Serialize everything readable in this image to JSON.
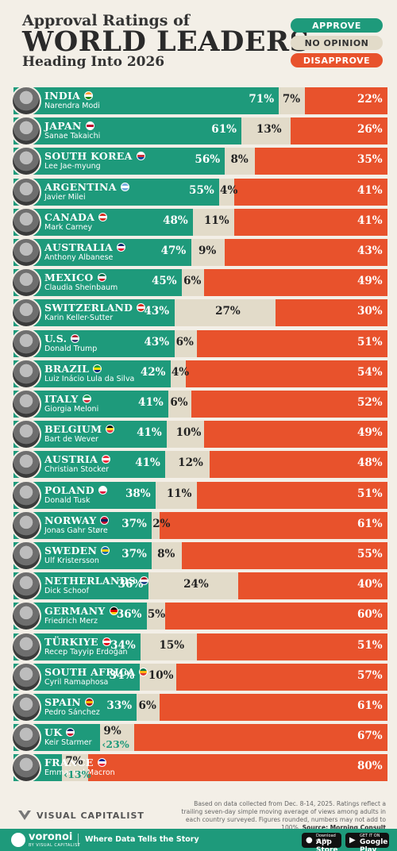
{
  "header": {
    "title_line1": "Approval Ratings of",
    "title_line2": "WORLD LEADERS",
    "title_line3": "Heading Into 2026"
  },
  "legend": [
    {
      "label": "APPROVE",
      "color": "#1e9a7b",
      "text_color": "#ffffff"
    },
    {
      "label": "NO OPINION",
      "color": "#e2dbc9",
      "text_color": "#333333"
    },
    {
      "label": "DISAPPROVE",
      "color": "#e8522c",
      "text_color": "#ffffff"
    }
  ],
  "chart_data": {
    "type": "bar",
    "stacked": true,
    "orientation": "horizontal",
    "unit": "%",
    "colors": {
      "approve": "#1e9a7b",
      "no_opinion": "#e2dbc9",
      "disapprove": "#e8522c"
    },
    "rows": [
      {
        "country": "INDIA",
        "leader": "Narendra Modi",
        "approve": 71,
        "no_opinion": 7,
        "disapprove": 22,
        "flag": [
          "#ff9933",
          "#ffffff",
          "#138808"
        ]
      },
      {
        "country": "JAPAN",
        "leader": "Sanae Takaichi",
        "approve": 61,
        "no_opinion": 13,
        "disapprove": 26,
        "flag": [
          "#ffffff",
          "#bc002d",
          "#ffffff"
        ]
      },
      {
        "country": "SOUTH KOREA",
        "leader": "Lee Jae-myung",
        "approve": 56,
        "no_opinion": 8,
        "disapprove": 35,
        "flag": [
          "#ffffff",
          "#cd2e3a",
          "#0047a0"
        ]
      },
      {
        "country": "ARGENTINA",
        "leader": "Javier Milei",
        "approve": 55,
        "no_opinion": 4,
        "disapprove": 41,
        "flag": [
          "#74acdf",
          "#ffffff",
          "#74acdf"
        ]
      },
      {
        "country": "CANADA",
        "leader": "Mark Carney",
        "approve": 48,
        "no_opinion": 11,
        "disapprove": 41,
        "flag": [
          "#d52b1e",
          "#ffffff",
          "#d52b1e"
        ]
      },
      {
        "country": "AUSTRALIA",
        "leader": "Anthony Albanese",
        "approve": 47,
        "no_opinion": 9,
        "disapprove": 43,
        "flag": [
          "#012169",
          "#ffffff",
          "#e4002b"
        ]
      },
      {
        "country": "MEXICO",
        "leader": "Claudia Sheinbaum",
        "approve": 45,
        "no_opinion": 6,
        "disapprove": 49,
        "flag": [
          "#006847",
          "#ffffff",
          "#ce1126"
        ]
      },
      {
        "country": "SWITZERLAND",
        "leader": "Karin Keller-Sutter",
        "approve": 43,
        "no_opinion": 27,
        "disapprove": 30,
        "flag": [
          "#d52b1e",
          "#ffffff",
          "#d52b1e"
        ]
      },
      {
        "country": "U.S.",
        "leader": "Donald Trump",
        "approve": 43,
        "no_opinion": 6,
        "disapprove": 51,
        "flag": [
          "#b22234",
          "#ffffff",
          "#3c3b6e"
        ]
      },
      {
        "country": "BRAZIL",
        "leader": "Luiz Inácio Lula da Silva",
        "approve": 42,
        "no_opinion": 4,
        "disapprove": 54,
        "flag": [
          "#009c3b",
          "#ffdf00",
          "#002776"
        ]
      },
      {
        "country": "ITALY",
        "leader": "Giorgia Meloni",
        "approve": 41,
        "no_opinion": 6,
        "disapprove": 52,
        "flag": [
          "#009246",
          "#ffffff",
          "#ce2b37"
        ]
      },
      {
        "country": "BELGIUM",
        "leader": "Bart de Wever",
        "approve": 41,
        "no_opinion": 10,
        "disapprove": 49,
        "flag": [
          "#000000",
          "#fdda24",
          "#ef3340"
        ]
      },
      {
        "country": "AUSTRIA",
        "leader": "Christian Stocker",
        "approve": 41,
        "no_opinion": 12,
        "disapprove": 48,
        "flag": [
          "#ed2939",
          "#ffffff",
          "#ed2939"
        ]
      },
      {
        "country": "POLAND",
        "leader": "Donald Tusk",
        "approve": 38,
        "no_opinion": 11,
        "disapprove": 51,
        "flag": [
          "#ffffff",
          "#ffffff",
          "#dc143c"
        ]
      },
      {
        "country": "NORWAY",
        "leader": "Jonas Gahr Støre",
        "approve": 37,
        "no_opinion": 2,
        "disapprove": 61,
        "flag": [
          "#ba0c2f",
          "#00205b",
          "#ba0c2f"
        ]
      },
      {
        "country": "SWEDEN",
        "leader": "Ulf Kristersson",
        "approve": 37,
        "no_opinion": 8,
        "disapprove": 55,
        "flag": [
          "#006aa7",
          "#fecc00",
          "#006aa7"
        ]
      },
      {
        "country": "NETHERLANDS",
        "leader": "Dick Schoof",
        "approve": 36,
        "no_opinion": 24,
        "disapprove": 40,
        "flag": [
          "#ae1c28",
          "#ffffff",
          "#21468b"
        ]
      },
      {
        "country": "GERMANY",
        "leader": "Friedrich Merz",
        "approve": 36,
        "no_opinion": 5,
        "disapprove": 60,
        "flag": [
          "#000000",
          "#dd0000",
          "#ffce00"
        ]
      },
      {
        "country": "TÜRKIYE",
        "leader": "Recep Tayyip Erdoğan",
        "approve": 34,
        "no_opinion": 15,
        "disapprove": 51,
        "flag": [
          "#e30a17",
          "#ffffff",
          "#e30a17"
        ]
      },
      {
        "country": "SOUTH AFRICA",
        "leader": "Cyril Ramaphosa",
        "approve": 34,
        "no_opinion": 10,
        "disapprove": 57,
        "flag": [
          "#007749",
          "#ffb612",
          "#de3831"
        ]
      },
      {
        "country": "SPAIN",
        "leader": "Pedro Sánchez",
        "approve": 33,
        "no_opinion": 6,
        "disapprove": 61,
        "flag": [
          "#aa151b",
          "#f1bf00",
          "#aa151b"
        ]
      },
      {
        "country": "UK",
        "leader": "Keir Starmer",
        "approve": 23,
        "no_opinion": 9,
        "disapprove": 67,
        "flag": [
          "#012169",
          "#ffffff",
          "#c8102e"
        ]
      },
      {
        "country": "FRANCE",
        "leader": "Emmanuel Macron",
        "approve": 13,
        "no_opinion": 7,
        "disapprove": 80,
        "flag": [
          "#002395",
          "#ffffff",
          "#ed2939"
        ]
      }
    ]
  },
  "footer": {
    "note": "Based on data collected from Dec. 8-14, 2025. Ratings reflect a trailing seven-day simple moving average of views among adults in each country surveyed. Figures rounded, numbers may not add to 100%.",
    "source_label": "Source:",
    "source": "Morning Consult",
    "brand": "VISUAL CAPITALIST",
    "voronoi": "voronoi",
    "voronoi_sub": "BY VISUAL CAPITALIST",
    "tagline": "Where Data Tells the Story",
    "app_store_small": "Download on the",
    "app_store": "App Store",
    "google_play_small": "GET IT ON",
    "google_play": "Google Play"
  }
}
